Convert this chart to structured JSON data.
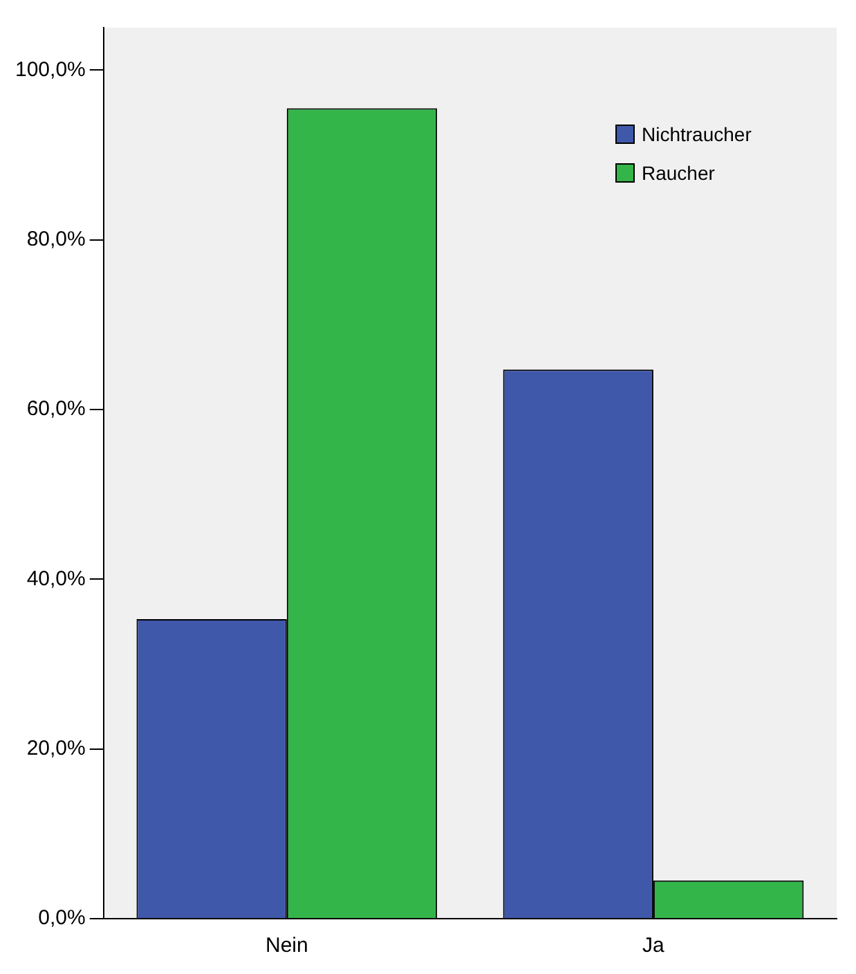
{
  "chart_data": {
    "type": "bar",
    "categories": [
      "Nein",
      "Ja"
    ],
    "series": [
      {
        "name": "Nichtraucher",
        "color": "#3f58aa",
        "values": [
          35.3,
          64.7
        ]
      },
      {
        "name": "Raucher",
        "color": "#33b54a",
        "values": [
          95.5,
          4.5
        ]
      }
    ],
    "ylim": [
      0,
      105
    ],
    "yticks": [
      {
        "value": 0,
        "label": "0,0%"
      },
      {
        "value": 20,
        "label": "20,0%"
      },
      {
        "value": 40,
        "label": "40,0%"
      },
      {
        "value": 60,
        "label": "60,0%"
      },
      {
        "value": 80,
        "label": "80,0%"
      },
      {
        "value": 100,
        "label": "100,0%"
      }
    ],
    "grid": false,
    "legend": "top right"
  }
}
